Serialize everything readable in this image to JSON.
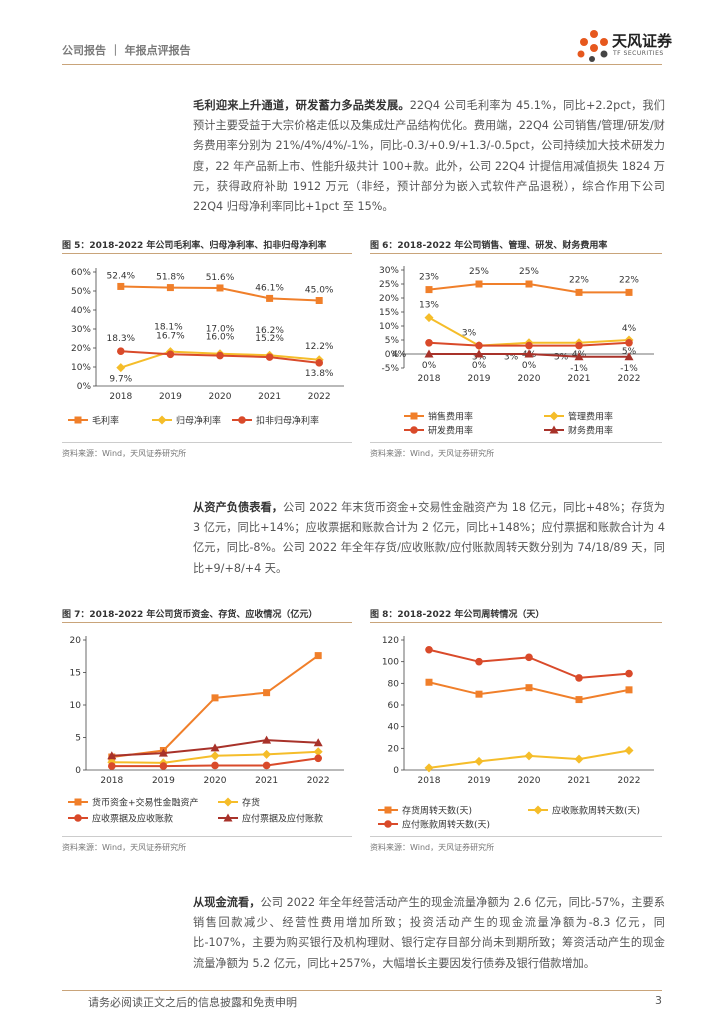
{
  "header": {
    "text": "公司报告 ｜ 年报点评报告"
  },
  "logo": {
    "name": "天风证券",
    "en": "TF SECURITIES"
  },
  "paragraphs": [
    {
      "lead": "毛利迎来上升通道，研发蓄力多品类发展。",
      "body": "22Q4 公司毛利率为 45.1%，同比+2.2pct，我们预计主要受益于大宗价格走低以及集成灶产品结构优化。费用端，22Q4 公司销售/管理/研发/财务费用率分别为 21%/4%/4%/-1%，同比-0.3/+0.9/+1.3/-0.5pct，公司持续加大技术研发力度，22 年产品新上市、性能升级共计 100+款。此外，公司 22Q4 计提信用减值损失 1824 万元，获得政府补助 1912 万元（非经，预计部分为嵌入式软件产品退税），综合作用下公司 22Q4 归母净利率同比+1pct 至 15%。"
    },
    {
      "lead": "从资产负债表看，",
      "body": "公司 2022 年末货币资金+交易性金融资产为 18 亿元，同比+48%；存货为 3 亿元，同比+14%；应收票据和账款合计为 2 亿元，同比+148%；应付票据和账款合计为 4 亿元，同比-8%。公司 2022 年全年存货/应收账款/应付账款周转天数分别为 74/18/89 天，同比+9/+8/+4 天。"
    },
    {
      "lead": "从现金流看，",
      "body": "公司 2022 年全年经营活动产生的现金流量净额为 2.6 亿元，同比-57%，主要系销售回款减少、经营性费用增加所致；投资活动产生的现金流量净额为-8.3 亿元，同比-107%，主要为购买银行及机构理财、银行定存目部分尚未到期所致；筹资活动产生的现金流量净额为 5.2 亿元，同比+257%，大幅增长主要因发行债券及银行借款增加。"
    }
  ],
  "figures": [
    {
      "title": "图 5：2018-2022 年公司毛利率、归母净利率、扣非归母净利率",
      "source": "资料来源：Wind，天风证券研究所"
    },
    {
      "title": "图 6：2018-2022 年公司销售、管理、研发、财务费用率",
      "source": "资料来源：Wind，天风证券研究所"
    },
    {
      "title": "图 7：2018-2022 年公司货币资金、存货、应收情况（亿元）",
      "source": "资料来源：Wind，天风证券研究所"
    },
    {
      "title": "图 8：2018-2022 年公司周转情况（天）",
      "source": "资料来源：Wind，天风证券研究所"
    }
  ],
  "footer": {
    "disclaimer": "请务必阅读正文之后的信息披露和免责申明",
    "page": "3"
  },
  "chart_data": [
    {
      "type": "line",
      "x": [
        "2018",
        "2019",
        "2020",
        "2021",
        "2022"
      ],
      "yticks": [
        "0%",
        "10%",
        "20%",
        "30%",
        "40%",
        "50%",
        "60%"
      ],
      "ylim": [
        0,
        60
      ],
      "series": [
        {
          "name": "毛利率",
          "color": "#f07f2a",
          "marker": "square",
          "values": [
            52.4,
            51.8,
            51.6,
            46.1,
            45.0
          ],
          "labels": [
            "52.4%",
            "51.8%",
            "51.6%",
            "46.1%",
            "45.0%"
          ]
        },
        {
          "name": "归母净利率",
          "color": "#f5bd2a",
          "marker": "diamond",
          "values": [
            9.7,
            18.1,
            17.0,
            16.2,
            13.8
          ],
          "labels": [
            "9.7%",
            "18.1%",
            "17.0%",
            "16.2%",
            "13.8%"
          ]
        },
        {
          "name": "扣非归母净利率",
          "color": "#d94a2a",
          "marker": "circle",
          "values": [
            18.3,
            16.7,
            16.0,
            15.2,
            12.2
          ],
          "labels": [
            "18.3%",
            "16.7%",
            "16.0%",
            "15.2%",
            "12.2%"
          ]
        }
      ]
    },
    {
      "type": "line",
      "x": [
        "2018",
        "2019",
        "2020",
        "2021",
        "2022"
      ],
      "yticks": [
        "-5%",
        "0%",
        "5%",
        "10%",
        "15%",
        "20%",
        "25%",
        "30%"
      ],
      "ylim": [
        -5,
        30
      ],
      "series": [
        {
          "name": "销售费用率",
          "color": "#f07f2a",
          "marker": "square",
          "values": [
            23,
            25,
            25,
            22,
            22
          ],
          "labels": [
            "23%",
            "25%",
            "25%",
            "22%",
            "22%"
          ]
        },
        {
          "name": "管理费用率",
          "color": "#f5bd2a",
          "marker": "diamond",
          "values": [
            13,
            3,
            4,
            4,
            5
          ],
          "labels": [
            "13%",
            "3%",
            "4%",
            "4%",
            "5%"
          ]
        },
        {
          "name": "研发费用率",
          "color": "#d94a2a",
          "marker": "circle",
          "values": [
            4,
            3,
            3,
            3,
            4
          ],
          "labels": [
            "4%",
            "3%",
            "3%",
            "3%",
            "4%"
          ]
        },
        {
          "name": "财务费用率",
          "color": "#a8322a",
          "marker": "triangle",
          "values": [
            0,
            0,
            0,
            -1,
            -1
          ],
          "labels": [
            "0%",
            "0%",
            "0%",
            "-1%",
            "-1%"
          ]
        }
      ]
    },
    {
      "type": "line",
      "x": [
        "2018",
        "2019",
        "2020",
        "2021",
        "2022"
      ],
      "yticks": [
        "0",
        "5",
        "10",
        "15",
        "20"
      ],
      "ylim": [
        0,
        20
      ],
      "series": [
        {
          "name": "货币资金+交易性金融资产",
          "color": "#f07f2a",
          "marker": "square",
          "values": [
            2.0,
            3.0,
            11.1,
            11.9,
            17.6
          ]
        },
        {
          "name": "存货",
          "color": "#f5bd2a",
          "marker": "diamond",
          "values": [
            1.2,
            1.1,
            2.2,
            2.4,
            2.8
          ]
        },
        {
          "name": "应收票据及应收账款",
          "color": "#d94a2a",
          "marker": "circle",
          "values": [
            0.6,
            0.6,
            0.7,
            0.7,
            1.8
          ]
        },
        {
          "name": "应付票据及应付账款",
          "color": "#a8322a",
          "marker": "triangle",
          "values": [
            2.2,
            2.6,
            3.4,
            4.6,
            4.2
          ]
        }
      ]
    },
    {
      "type": "line",
      "x": [
        "2018",
        "2019",
        "2020",
        "2021",
        "2022"
      ],
      "yticks": [
        "0",
        "20",
        "40",
        "60",
        "80",
        "100",
        "120"
      ],
      "ylim": [
        0,
        120
      ],
      "series": [
        {
          "name": "存货周转天数(天)",
          "color": "#f07f2a",
          "marker": "square",
          "values": [
            81,
            70,
            76,
            65,
            74
          ]
        },
        {
          "name": "应收账款周转天数(天)",
          "color": "#f5bd2a",
          "marker": "diamond",
          "values": [
            2,
            8,
            13,
            10,
            18
          ]
        },
        {
          "name": "应付账款周转天数(天)",
          "color": "#d94a2a",
          "marker": "circle",
          "values": [
            111,
            100,
            104,
            85,
            89
          ]
        }
      ]
    }
  ]
}
